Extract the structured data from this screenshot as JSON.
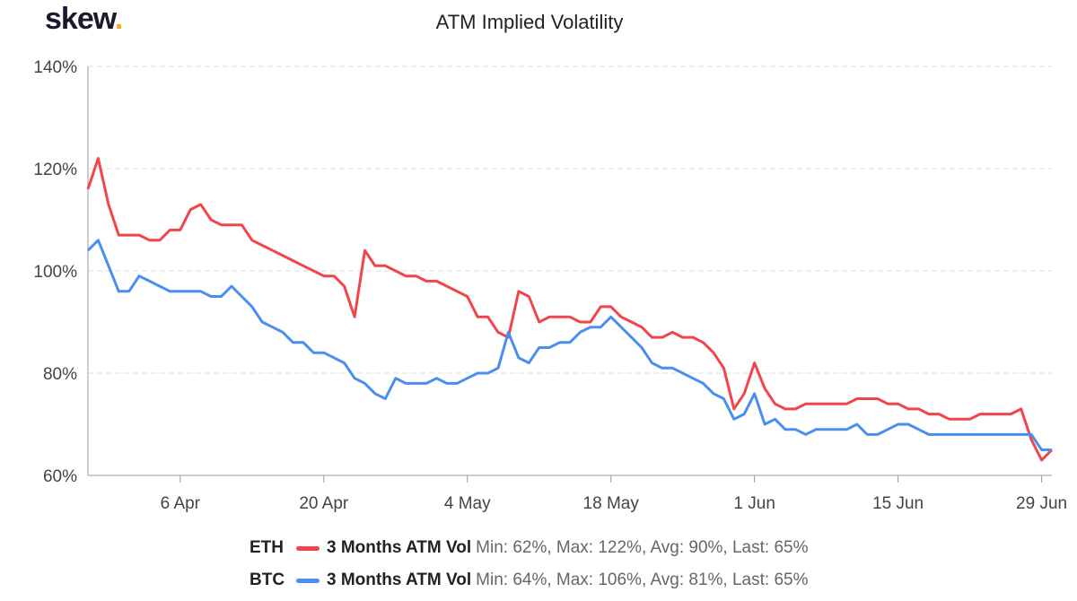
{
  "brand": {
    "name": "skew",
    "dot": "."
  },
  "chart_data": {
    "type": "line",
    "title": "ATM Implied Volatility",
    "xlabel": "",
    "ylabel": "",
    "x_ticks": [
      "6 Apr",
      "20 Apr",
      "4 May",
      "18 May",
      "1 Jun",
      "15 Jun",
      "29 Jun"
    ],
    "x_tick_dates": [
      "2020-04-06",
      "2020-04-20",
      "2020-05-04",
      "2020-05-18",
      "2020-06-01",
      "2020-06-15",
      "2020-06-29"
    ],
    "x_range": [
      "2020-03-28",
      "2020-06-30"
    ],
    "y_ticks": [
      "60%",
      "80%",
      "100%",
      "120%",
      "140%"
    ],
    "ylim": [
      60,
      140
    ],
    "y_unit": "%",
    "grid": "horizontal dashed",
    "legend_position": "bottom",
    "x": [
      "2020-03-28",
      "2020-03-29",
      "2020-03-30",
      "2020-03-31",
      "2020-04-01",
      "2020-04-02",
      "2020-04-03",
      "2020-04-04",
      "2020-04-05",
      "2020-04-06",
      "2020-04-07",
      "2020-04-08",
      "2020-04-09",
      "2020-04-10",
      "2020-04-11",
      "2020-04-12",
      "2020-04-13",
      "2020-04-14",
      "2020-04-15",
      "2020-04-16",
      "2020-04-17",
      "2020-04-18",
      "2020-04-19",
      "2020-04-20",
      "2020-04-21",
      "2020-04-22",
      "2020-04-23",
      "2020-04-24",
      "2020-04-25",
      "2020-04-26",
      "2020-04-27",
      "2020-04-28",
      "2020-04-29",
      "2020-04-30",
      "2020-05-01",
      "2020-05-02",
      "2020-05-03",
      "2020-05-04",
      "2020-05-05",
      "2020-05-06",
      "2020-05-07",
      "2020-05-08",
      "2020-05-09",
      "2020-05-10",
      "2020-05-11",
      "2020-05-12",
      "2020-05-13",
      "2020-05-14",
      "2020-05-15",
      "2020-05-16",
      "2020-05-17",
      "2020-05-18",
      "2020-05-19",
      "2020-05-20",
      "2020-05-21",
      "2020-05-22",
      "2020-05-23",
      "2020-05-24",
      "2020-05-25",
      "2020-05-26",
      "2020-05-27",
      "2020-05-28",
      "2020-05-29",
      "2020-05-30",
      "2020-05-31",
      "2020-06-01",
      "2020-06-02",
      "2020-06-03",
      "2020-06-04",
      "2020-06-05",
      "2020-06-06",
      "2020-06-07",
      "2020-06-08",
      "2020-06-09",
      "2020-06-10",
      "2020-06-11",
      "2020-06-12",
      "2020-06-13",
      "2020-06-14",
      "2020-06-15",
      "2020-06-16",
      "2020-06-17",
      "2020-06-18",
      "2020-06-19",
      "2020-06-20",
      "2020-06-21",
      "2020-06-22",
      "2020-06-23",
      "2020-06-24",
      "2020-06-25",
      "2020-06-26",
      "2020-06-27",
      "2020-06-28",
      "2020-06-29",
      "2020-06-30"
    ],
    "series": [
      {
        "name": "ETH",
        "label": "3 Months ATM Vol",
        "stats": "Min: 62%, Max: 122%, Avg: 90%, Last: 65%",
        "color": "#f0464a",
        "values": [
          116,
          122,
          113,
          107,
          107,
          107,
          106,
          106,
          108,
          108,
          112,
          113,
          110,
          109,
          109,
          109,
          106,
          105,
          104,
          103,
          102,
          101,
          100,
          99,
          99,
          97,
          91,
          104,
          101,
          101,
          100,
          99,
          99,
          98,
          98,
          97,
          96,
          95,
          91,
          91,
          88,
          87,
          96,
          95,
          90,
          91,
          91,
          91,
          90,
          90,
          93,
          93,
          91,
          90,
          89,
          87,
          87,
          88,
          87,
          87,
          86,
          84,
          81,
          73,
          76,
          82,
          77,
          74,
          73,
          73,
          74,
          74,
          74,
          74,
          74,
          75,
          75,
          75,
          74,
          74,
          73,
          73,
          72,
          72,
          71,
          71,
          71,
          72,
          72,
          72,
          72,
          73,
          67,
          63,
          65
        ]
      },
      {
        "name": "BTC",
        "label": "3 Months ATM Vol",
        "stats": "Min: 64%, Max: 106%, Avg: 81%, Last: 65%",
        "color": "#4a8ff0",
        "values": [
          104,
          106,
          101,
          96,
          96,
          99,
          98,
          97,
          96,
          96,
          96,
          96,
          95,
          95,
          97,
          95,
          93,
          90,
          89,
          88,
          86,
          86,
          84,
          84,
          83,
          82,
          79,
          78,
          76,
          75,
          79,
          78,
          78,
          78,
          79,
          78,
          78,
          79,
          80,
          80,
          81,
          88,
          83,
          82,
          85,
          85,
          86,
          86,
          88,
          89,
          89,
          91,
          89,
          87,
          85,
          82,
          81,
          81,
          80,
          79,
          78,
          76,
          75,
          71,
          72,
          76,
          70,
          71,
          69,
          69,
          68,
          69,
          69,
          69,
          69,
          70,
          68,
          68,
          69,
          70,
          70,
          69,
          68,
          68,
          68,
          68,
          68,
          68,
          68,
          68,
          68,
          68,
          68,
          65,
          65
        ]
      }
    ]
  }
}
